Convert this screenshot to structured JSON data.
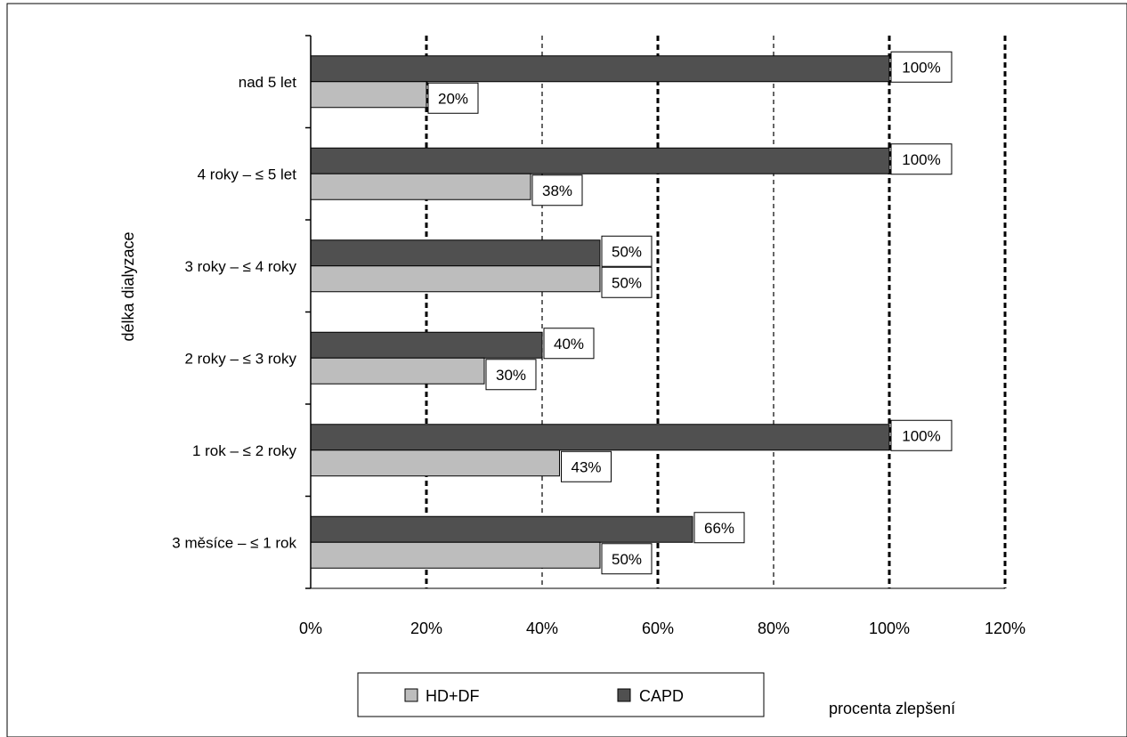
{
  "chart_data": {
    "type": "bar",
    "orientation": "horizontal",
    "title": "",
    "xlabel": "procenta zlepšení",
    "ylabel": "délka dialyzace",
    "categories": [
      "nad 5 let",
      "4 roky – ≤ 5 let",
      "3 roky – ≤ 4 roky",
      "2 roky – ≤ 3 roky",
      "1 rok – ≤ 2 roky",
      "3 měsíce – ≤ 1 rok"
    ],
    "series": [
      {
        "name": "CAPD",
        "color": "#505050",
        "values": [
          100,
          100,
          50,
          40,
          100,
          66
        ],
        "labels": [
          "100%",
          "100%",
          "50%",
          "40%",
          "100%",
          "66%"
        ]
      },
      {
        "name": "HD+DF",
        "color": "#bdbdbd",
        "values": [
          20,
          38,
          50,
          30,
          43,
          50
        ],
        "labels": [
          "20%",
          "38%",
          "50%",
          "30%",
          "43%",
          "50%"
        ]
      }
    ],
    "xlim": [
      0,
      120
    ],
    "xticks": [
      0,
      20,
      40,
      60,
      80,
      100,
      120
    ],
    "xtick_labels": [
      "0%",
      "20%",
      "40%",
      "60%",
      "80%",
      "100%",
      "120%"
    ],
    "grid": true,
    "legend": {
      "placement": "bottom",
      "entries": [
        {
          "name": "HD+DF",
          "color": "#bdbdbd"
        },
        {
          "name": "CAPD",
          "color": "#505050"
        }
      ]
    }
  }
}
